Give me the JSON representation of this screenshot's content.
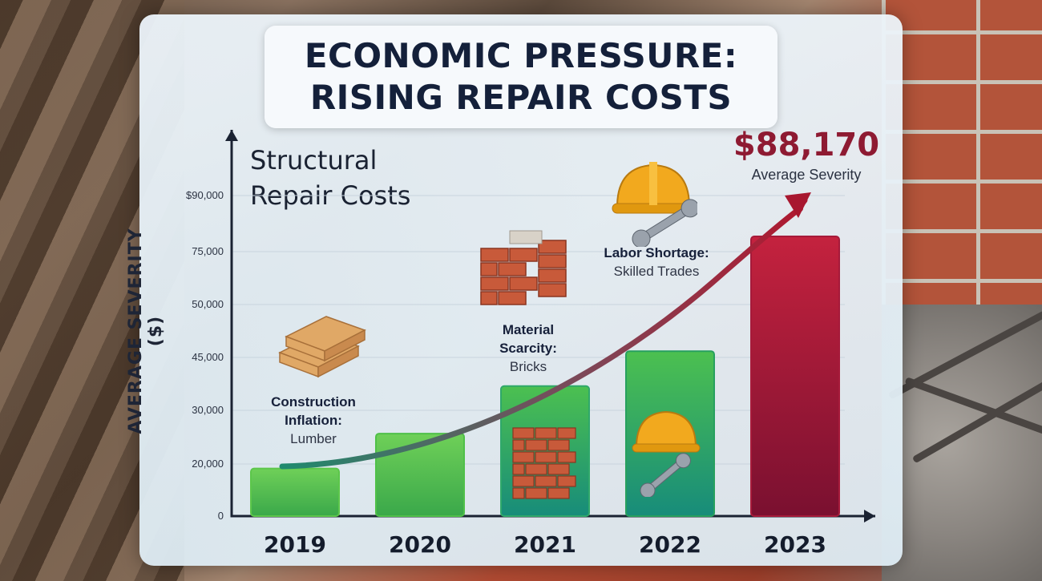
{
  "title": {
    "line1": "ECONOMIC PRESSURE:",
    "line2": "RISING REPAIR COSTS"
  },
  "subtitle": {
    "line1": "Structural",
    "line2": "Repair Costs"
  },
  "chart_data": {
    "type": "bar",
    "ylabel": "AVERAGE SEVERITY ($)",
    "categories": [
      "2019",
      "2020",
      "2021",
      "2022",
      "2023"
    ],
    "y_tick_labels": [
      "0",
      "20,000",
      "30,000",
      "45,000",
      "50,000",
      "75,000",
      "$90,000"
    ],
    "values": [
      15000,
      26000,
      41000,
      52000,
      88170
    ],
    "bar_colors": [
      "#5cc64a",
      "#4fc048",
      "#2fa86a",
      "#27a05e",
      "#a61a3a"
    ],
    "trend_arrow": true
  },
  "callout": {
    "value": "$88,170",
    "label": "Average Severity"
  },
  "annotations": [
    {
      "bold": "Construction Inflation:",
      "regular": "Lumber"
    },
    {
      "bold": "Material Scarcity:",
      "regular": "Bricks"
    },
    {
      "bold": "Labor Shortage:",
      "regular": "Skilled Trades"
    }
  ],
  "icons": [
    "lumber-icon",
    "brick-wall-icon",
    "hardhat-wrench-icon"
  ]
}
